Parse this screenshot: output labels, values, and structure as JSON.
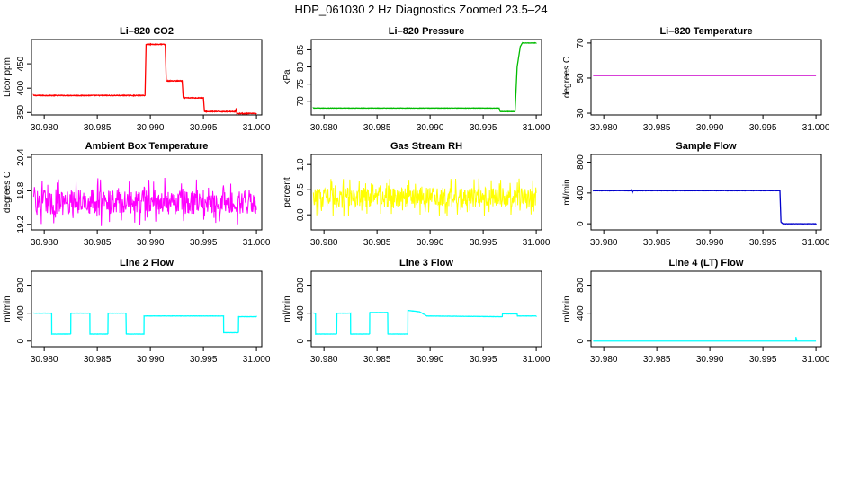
{
  "figure": {
    "title": "HDP_061030  2 Hz Diagnostics Zoomed 23.5–24"
  },
  "chart_data": [
    {
      "type": "line",
      "title": "Li–820 CO2",
      "xlabel": "",
      "ylabel": "Licor ppm",
      "color": "#ff0000",
      "xlim": [
        30.9788,
        31.0005
      ],
      "ylim": [
        345,
        500
      ],
      "xticks": [
        30.98,
        30.985,
        30.99,
        30.995,
        31.0
      ],
      "xtick_labels": [
        "30.980",
        "30.985",
        "30.990",
        "30.995",
        "31.000"
      ],
      "yticks": [
        350,
        400,
        450
      ],
      "ytick_labels": [
        "350",
        "400",
        "450"
      ],
      "style": "steps",
      "noise": 1.5,
      "segments": [
        [
          30.979,
          385
        ],
        [
          30.9895,
          385
        ],
        [
          30.9896,
          490
        ],
        [
          30.9914,
          490
        ],
        [
          30.9915,
          415
        ],
        [
          30.993,
          415
        ],
        [
          30.9931,
          380
        ],
        [
          30.995,
          380
        ],
        [
          30.9951,
          352
        ],
        [
          30.998,
          352
        ],
        [
          30.9981,
          358
        ],
        [
          30.99815,
          348
        ],
        [
          31.0,
          348
        ]
      ]
    },
    {
      "type": "line",
      "title": "Li–820 Pressure",
      "xlabel": "",
      "ylabel": "kPa",
      "color": "#00bb00",
      "xlim": [
        30.9788,
        31.0005
      ],
      "ylim": [
        66,
        88
      ],
      "xticks": [
        30.98,
        30.985,
        30.99,
        30.995,
        31.0
      ],
      "xtick_labels": [
        "30.980",
        "30.985",
        "30.990",
        "30.995",
        "31.000"
      ],
      "yticks": [
        70,
        75,
        80,
        85
      ],
      "ytick_labels": [
        "70",
        "75",
        "80",
        "85"
      ],
      "style": "steps",
      "noise": 0.1,
      "segments": [
        [
          30.979,
          68
        ],
        [
          30.9965,
          68
        ],
        [
          30.9966,
          67
        ],
        [
          30.998,
          67
        ],
        [
          30.99805,
          70
        ],
        [
          30.9982,
          80
        ],
        [
          30.9985,
          86
        ],
        [
          30.9987,
          87
        ],
        [
          31.0,
          87
        ]
      ]
    },
    {
      "type": "line",
      "title": "Li–820 Temperature",
      "xlabel": "",
      "ylabel": "degrees C",
      "color": "#cc00cc",
      "xlim": [
        30.9788,
        31.0005
      ],
      "ylim": [
        29,
        72
      ],
      "xticks": [
        30.98,
        30.985,
        30.99,
        30.995,
        31.0
      ],
      "xtick_labels": [
        "30.980",
        "30.985",
        "30.990",
        "30.995",
        "31.000"
      ],
      "yticks": [
        30,
        50,
        70
      ],
      "ytick_labels": [
        "30",
        "50",
        "70"
      ],
      "style": "steps",
      "noise": 0,
      "segments": [
        [
          30.979,
          51.5
        ],
        [
          31.0,
          51.5
        ]
      ]
    },
    {
      "type": "line",
      "title": "Ambient Box Temperature",
      "xlabel": "",
      "ylabel": "degrees C",
      "color": "#ff00ff",
      "xlim": [
        30.9788,
        31.0005
      ],
      "ylim": [
        19.1,
        20.45
      ],
      "xticks": [
        30.98,
        30.985,
        30.99,
        30.995,
        31.0
      ],
      "xtick_labels": [
        "30.980",
        "30.985",
        "30.990",
        "30.995",
        "31.000"
      ],
      "yticks": [
        19.2,
        19.8,
        20.4
      ],
      "ytick_labels": [
        "19.2",
        "19.8",
        "20.4"
      ],
      "style": "noise",
      "center": 19.6,
      "spread": 0.4,
      "min": 19.15,
      "max": 20.4
    },
    {
      "type": "line",
      "title": "Gas Stream RH",
      "xlabel": "",
      "ylabel": "percent",
      "color": "#ffff00",
      "xlim": [
        30.9788,
        31.0005
      ],
      "ylim": [
        -0.3,
        1.2
      ],
      "xticks": [
        30.98,
        30.985,
        30.99,
        30.995,
        31.0
      ],
      "xtick_labels": [
        "30.980",
        "30.985",
        "30.990",
        "30.995",
        "31.000"
      ],
      "yticks": [
        0.0,
        0.5,
        1.0
      ],
      "ytick_labels": [
        "0.0",
        "0.5",
        "1.0"
      ],
      "style": "noise",
      "center": 0.35,
      "spread": 0.35,
      "min": -0.25,
      "max": 1.15
    },
    {
      "type": "line",
      "title": "Sample Flow",
      "xlabel": "",
      "ylabel": "ml/min",
      "color": "#0000cc",
      "xlim": [
        30.9788,
        31.0005
      ],
      "ylim": [
        -80,
        900
      ],
      "xticks": [
        30.98,
        30.985,
        30.99,
        30.995,
        31.0
      ],
      "xtick_labels": [
        "30.980",
        "30.985",
        "30.990",
        "30.995",
        "31.000"
      ],
      "yticks": [
        0,
        400,
        800
      ],
      "ytick_labels": [
        "0",
        "400",
        "800"
      ],
      "style": "steps",
      "noise": 4,
      "segments": [
        [
          30.979,
          430
        ],
        [
          30.9826,
          430
        ],
        [
          30.9827,
          410
        ],
        [
          30.9828,
          430
        ],
        [
          30.9966,
          430
        ],
        [
          30.9967,
          20
        ],
        [
          30.9969,
          0
        ],
        [
          31.0,
          0
        ]
      ]
    },
    {
      "type": "line",
      "title": "Line 2 Flow",
      "xlabel": "",
      "ylabel": "ml/min",
      "color": "#00ffff",
      "xlim": [
        30.9788,
        31.0005
      ],
      "ylim": [
        -80,
        1000
      ],
      "xticks": [
        30.98,
        30.985,
        30.99,
        30.995,
        31.0
      ],
      "xtick_labels": [
        "30.980",
        "30.985",
        "30.990",
        "30.995",
        "31.000"
      ],
      "yticks": [
        0,
        400,
        800
      ],
      "ytick_labels": [
        "0",
        "400",
        "800"
      ],
      "style": "steps",
      "noise": 3,
      "segments": [
        [
          30.979,
          400
        ],
        [
          30.9807,
          400
        ],
        [
          30.9807,
          100
        ],
        [
          30.9825,
          100
        ],
        [
          30.9825,
          400
        ],
        [
          30.9843,
          400
        ],
        [
          30.9843,
          100
        ],
        [
          30.986,
          100
        ],
        [
          30.986,
          400
        ],
        [
          30.9877,
          400
        ],
        [
          30.9877,
          100
        ],
        [
          30.9894,
          100
        ],
        [
          30.9894,
          360
        ],
        [
          30.9969,
          360
        ],
        [
          30.9969,
          120
        ],
        [
          30.9983,
          120
        ],
        [
          30.9983,
          350
        ],
        [
          31.0,
          350
        ]
      ]
    },
    {
      "type": "line",
      "title": "Line 3 Flow",
      "xlabel": "",
      "ylabel": "ml/min",
      "color": "#00ffff",
      "xlim": [
        30.9788,
        31.0005
      ],
      "ylim": [
        -80,
        1000
      ],
      "xticks": [
        30.98,
        30.985,
        30.99,
        30.995,
        31.0
      ],
      "xtick_labels": [
        "30.980",
        "30.985",
        "30.990",
        "30.995",
        "31.000"
      ],
      "yticks": [
        0,
        400,
        800
      ],
      "ytick_labels": [
        "0",
        "400",
        "800"
      ],
      "style": "steps",
      "noise": 3,
      "segments": [
        [
          30.979,
          400
        ],
        [
          30.9792,
          400
        ],
        [
          30.9792,
          100
        ],
        [
          30.9812,
          100
        ],
        [
          30.9812,
          400
        ],
        [
          30.9825,
          400
        ],
        [
          30.9825,
          100
        ],
        [
          30.9843,
          100
        ],
        [
          30.9843,
          410
        ],
        [
          30.986,
          410
        ],
        [
          30.986,
          100
        ],
        [
          30.9879,
          100
        ],
        [
          30.9879,
          440
        ],
        [
          30.989,
          420
        ],
        [
          30.9897,
          360
        ],
        [
          30.9968,
          350
        ],
        [
          30.9968,
          390
        ],
        [
          30.9982,
          390
        ],
        [
          30.9982,
          360
        ],
        [
          31.0,
          360
        ]
      ]
    },
    {
      "type": "line",
      "title": "Line 4 (LT) Flow",
      "xlabel": "",
      "ylabel": "ml/min",
      "color": "#00ffff",
      "xlim": [
        30.9788,
        31.0005
      ],
      "ylim": [
        -80,
        1000
      ],
      "xticks": [
        30.98,
        30.985,
        30.99,
        30.995,
        31.0
      ],
      "xtick_labels": [
        "30.980",
        "30.985",
        "30.990",
        "30.995",
        "31.000"
      ],
      "yticks": [
        0,
        400,
        800
      ],
      "ytick_labels": [
        "0",
        "400",
        "800"
      ],
      "style": "steps",
      "noise": 0,
      "segments": [
        [
          30.979,
          0
        ],
        [
          30.9981,
          0
        ],
        [
          30.9981,
          90
        ],
        [
          30.99813,
          0
        ],
        [
          30.99816,
          40
        ],
        [
          30.9982,
          0
        ],
        [
          31.0,
          0
        ]
      ]
    }
  ]
}
